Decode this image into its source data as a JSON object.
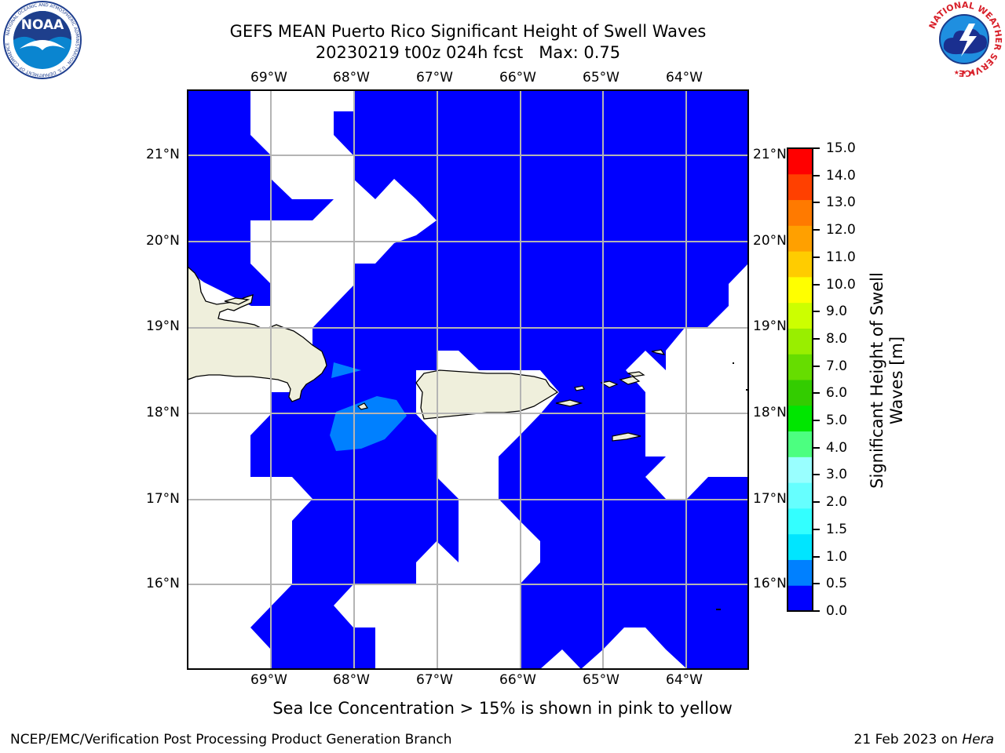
{
  "header": {
    "title_line1": "GEFS MEAN Puerto Rico Significant Height of Swell Waves",
    "title_line2": "20230219 t00z 024h fcst   Max: 0.75"
  },
  "logos": {
    "noaa_text": "NOAA",
    "noaa_ring_text": "NATIONAL OCEANIC AND ATMOSPHERIC ADMINISTRATION · U.S. DEPARTMENT OF COMMERCE",
    "nws_ring_text": "NATIONAL WEATHER SERVICE"
  },
  "map": {
    "lon_labels": [
      "69°W",
      "68°W",
      "67°W",
      "66°W",
      "65°W",
      "64°W"
    ],
    "lat_labels": [
      "21°N",
      "20°N",
      "19°N",
      "18°N",
      "17°N",
      "16°N"
    ],
    "colors": {
      "swell_0_05": "#0000ff",
      "swell_05_10": "#0080ff",
      "land": "#efefdc",
      "grid": "#b4b4b4"
    }
  },
  "colorbar": {
    "label": "Significant Height of Swell Waves [m]",
    "ticks": [
      "15.0",
      "14.0",
      "13.0",
      "12.0",
      "11.0",
      "10.0",
      "9.0",
      "8.0",
      "7.0",
      "6.0",
      "5.0",
      "4.0",
      "3.0",
      "2.0",
      "1.5",
      "1.0",
      "0.5",
      "0.0"
    ],
    "colors_bottom_to_top": [
      "#0000ff",
      "#0080ff",
      "#00e5ff",
      "#33ffff",
      "#66ffff",
      "#99ffff",
      "#4cff80",
      "#00e600",
      "#33cc00",
      "#66dd00",
      "#99ee00",
      "#ccff00",
      "#ffff00",
      "#ffcc00",
      "#ffa000",
      "#ff7a00",
      "#ff4000",
      "#ff0000"
    ]
  },
  "footer": {
    "note": "Sea Ice Concentration > 15% is shown in pink to yellow",
    "left": "NCEP/EMC/Verification Post Processing Product Generation Branch",
    "date": "21 Feb 2023 on ",
    "machine": "Hera"
  }
}
